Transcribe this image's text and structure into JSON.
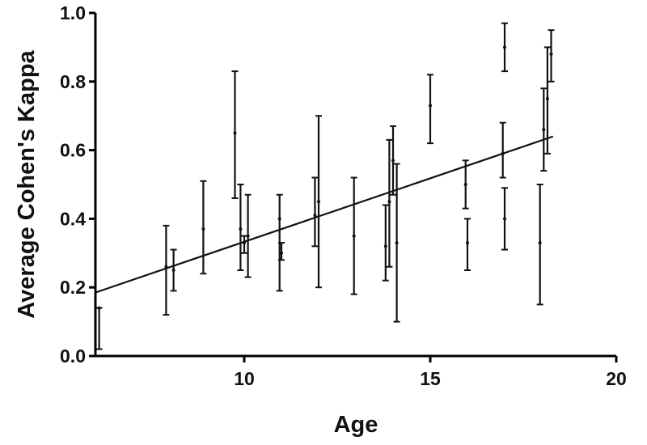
{
  "chart_data": {
    "type": "scatter",
    "xlabel": "Age",
    "ylabel": "Average Cohen's Kappa",
    "xlim": [
      6,
      20
    ],
    "ylim": [
      0,
      1
    ],
    "xticks": [
      "10",
      "15",
      "20"
    ],
    "yticks": [
      "0.0",
      "0.2",
      "0.4",
      "0.6",
      "0.8",
      "1.0"
    ],
    "grid": false,
    "points": [
      {
        "x": 6.1,
        "y": 0.14,
        "lo": 0.02,
        "hi": 0.14
      },
      {
        "x": 7.9,
        "y": 0.26,
        "lo": 0.12,
        "hi": 0.38
      },
      {
        "x": 8.1,
        "y": 0.25,
        "lo": 0.19,
        "hi": 0.31
      },
      {
        "x": 8.9,
        "y": 0.37,
        "lo": 0.24,
        "hi": 0.51
      },
      {
        "x": 9.75,
        "y": 0.65,
        "lo": 0.46,
        "hi": 0.83
      },
      {
        "x": 9.9,
        "y": 0.37,
        "lo": 0.25,
        "hi": 0.5
      },
      {
        "x": 10.0,
        "y": 0.33,
        "lo": 0.3,
        "hi": 0.35
      },
      {
        "x": 10.1,
        "y": 0.35,
        "lo": 0.23,
        "hi": 0.47
      },
      {
        "x": 10.95,
        "y": 0.4,
        "lo": 0.19,
        "hi": 0.47
      },
      {
        "x": 11.0,
        "y": 0.3,
        "lo": 0.28,
        "hi": 0.33
      },
      {
        "x": 11.9,
        "y": 0.41,
        "lo": 0.32,
        "hi": 0.52
      },
      {
        "x": 12.0,
        "y": 0.45,
        "lo": 0.2,
        "hi": 0.7
      },
      {
        "x": 12.95,
        "y": 0.35,
        "lo": 0.18,
        "hi": 0.52
      },
      {
        "x": 13.8,
        "y": 0.32,
        "lo": 0.22,
        "hi": 0.44
      },
      {
        "x": 13.9,
        "y": 0.45,
        "lo": 0.26,
        "hi": 0.63
      },
      {
        "x": 14.0,
        "y": 0.57,
        "lo": 0.47,
        "hi": 0.67
      },
      {
        "x": 14.1,
        "y": 0.33,
        "lo": 0.1,
        "hi": 0.56
      },
      {
        "x": 15.0,
        "y": 0.73,
        "lo": 0.62,
        "hi": 0.82
      },
      {
        "x": 15.95,
        "y": 0.5,
        "lo": 0.43,
        "hi": 0.57
      },
      {
        "x": 16.0,
        "y": 0.33,
        "lo": 0.25,
        "hi": 0.4
      },
      {
        "x": 16.95,
        "y": 0.59,
        "lo": 0.52,
        "hi": 0.68
      },
      {
        "x": 17.0,
        "y": 0.4,
        "lo": 0.31,
        "hi": 0.49
      },
      {
        "x": 17.0,
        "y": 0.9,
        "lo": 0.83,
        "hi": 0.97
      },
      {
        "x": 17.95,
        "y": 0.33,
        "lo": 0.15,
        "hi": 0.5
      },
      {
        "x": 18.05,
        "y": 0.66,
        "lo": 0.54,
        "hi": 0.78
      },
      {
        "x": 18.15,
        "y": 0.75,
        "lo": 0.59,
        "hi": 0.9
      },
      {
        "x": 18.25,
        "y": 0.88,
        "lo": 0.8,
        "hi": 0.95
      }
    ],
    "fit_line": {
      "x": [
        6.0,
        18.3
      ],
      "y": [
        0.185,
        0.64
      ]
    }
  }
}
